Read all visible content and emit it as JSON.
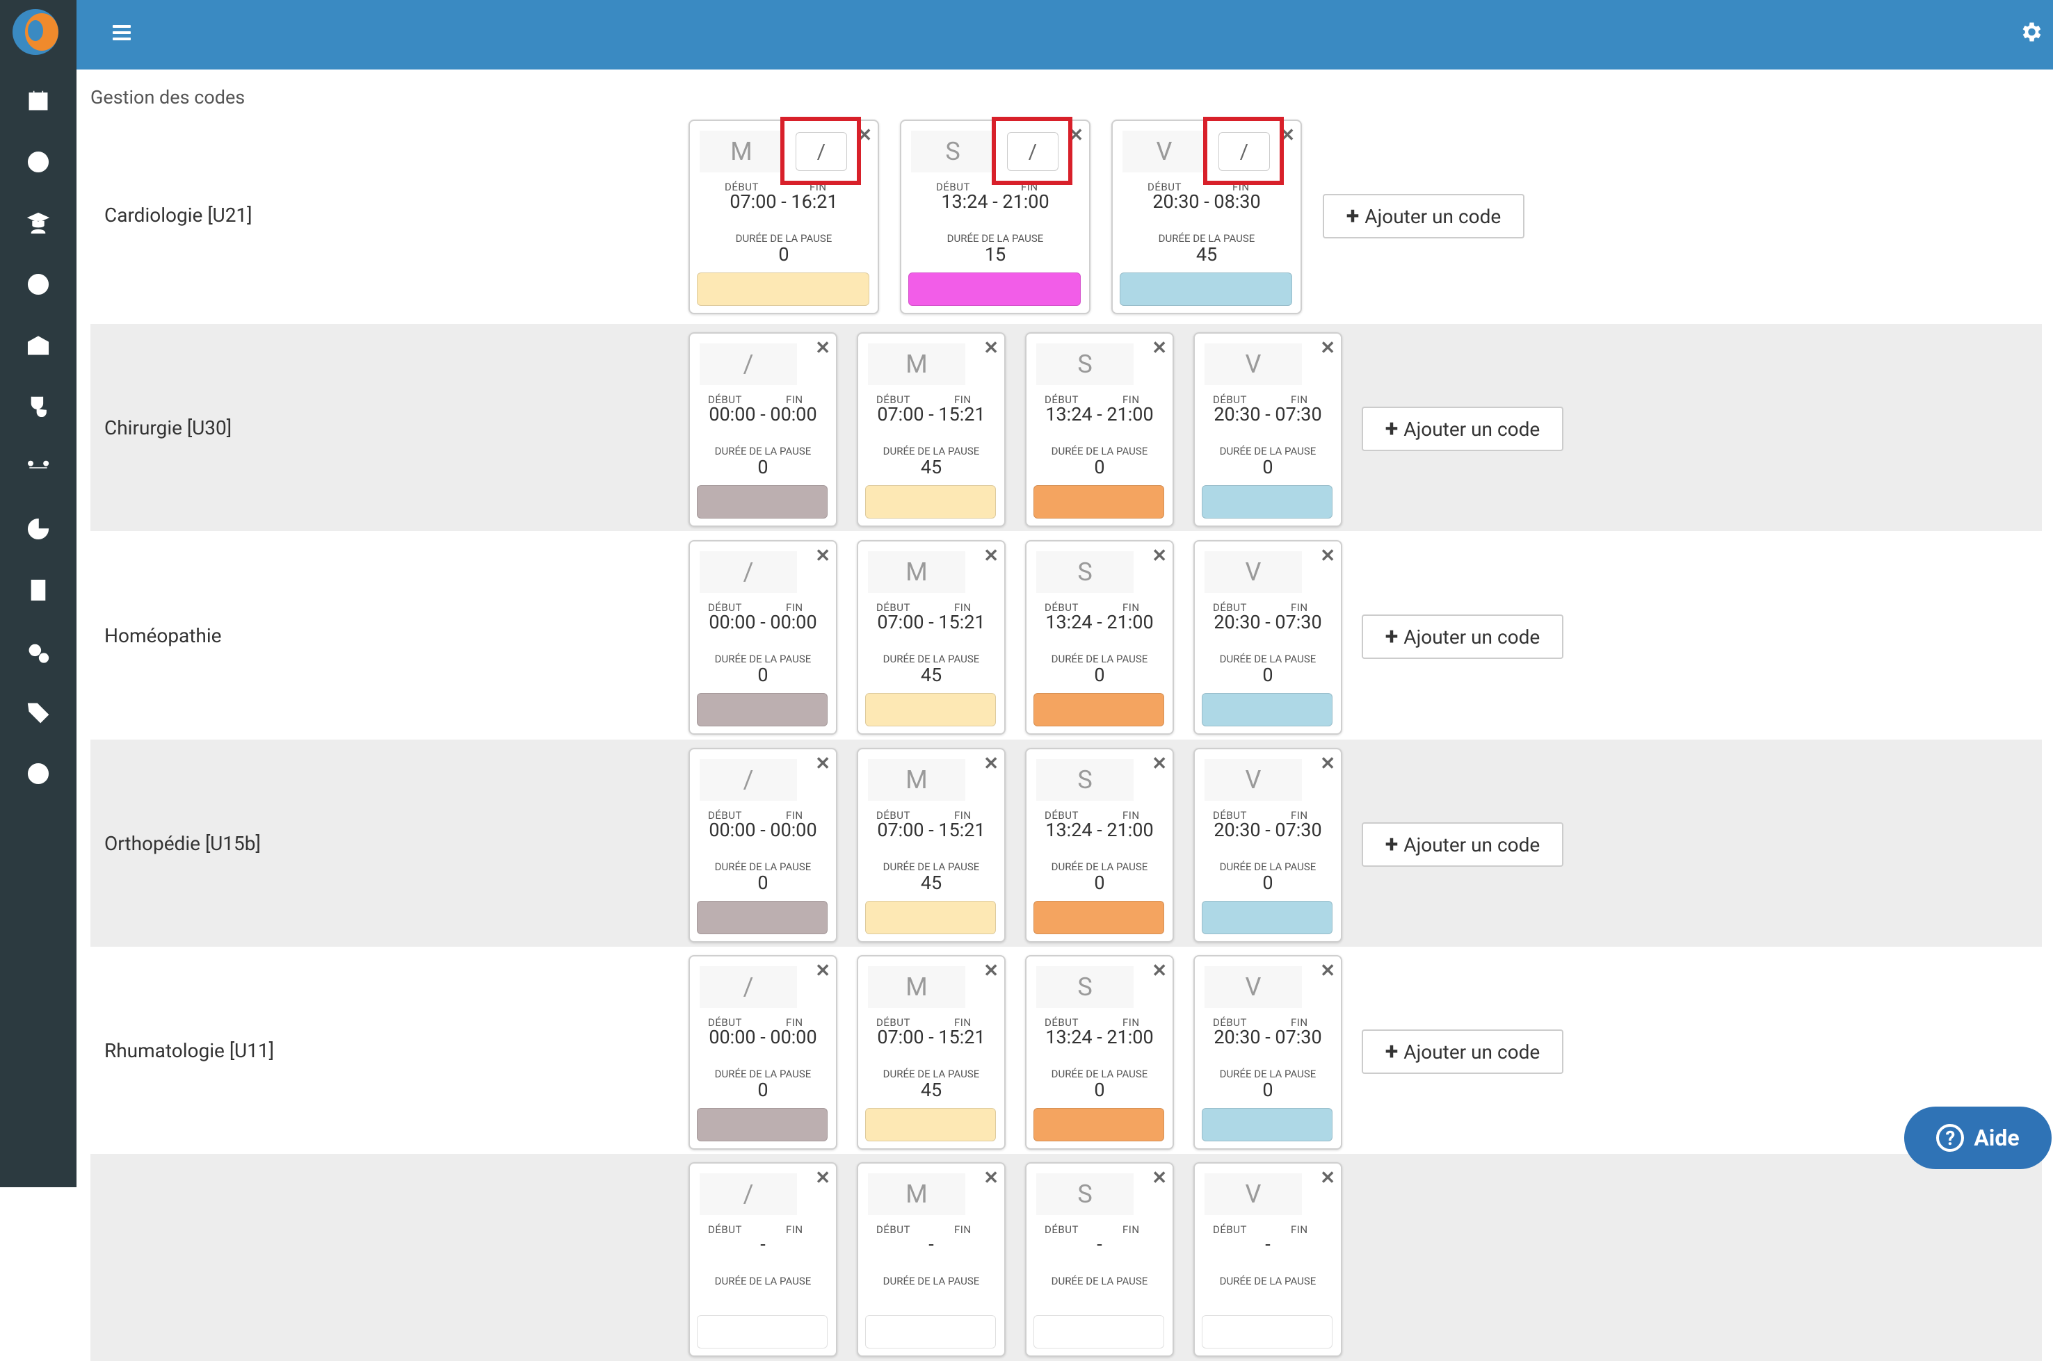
{
  "page": {
    "title": "Gestion des codes"
  },
  "labels": {
    "debut": "DÉBUT",
    "fin": "FIN",
    "pause": "DURÉE DE LA PAUSE",
    "add": "Ajouter un code"
  },
  "help": {
    "label": "Aide"
  },
  "sidebar": {
    "icons": [
      "calendar-icon",
      "clock-icon",
      "user-graduate-icon",
      "smile-icon",
      "hospital-user-icon",
      "stethoscope-icon",
      "people-arrows-icon",
      "pie-chart-icon",
      "id-badge-icon",
      "cogs-icon",
      "tags-icon",
      "info-icon"
    ]
  },
  "colors": {
    "topbar": "#3a8ac2",
    "sidebar": "#2c3a40",
    "highlight": "#d8202a"
  },
  "services": [
    {
      "name": "Cardiologie [U21]",
      "codes": [
        {
          "code": "M",
          "debut": "07:00",
          "fin": "16:21",
          "pause": "0",
          "color": "#fde8b4",
          "fin_input": "/"
        },
        {
          "code": "S",
          "debut": "13:24",
          "fin": "21:00",
          "pause": "15",
          "color": "#f25de8",
          "fin_input": "/"
        },
        {
          "code": "V",
          "debut": "20:30",
          "fin": "08:30",
          "pause": "45",
          "color": "#aed8e6",
          "fin_input": "/"
        }
      ]
    },
    {
      "name": "Chirurgie [U30]",
      "codes": [
        {
          "code": "/",
          "debut": "00:00",
          "fin": "00:00",
          "pause": "0",
          "color": "#bcafb0"
        },
        {
          "code": "M",
          "debut": "07:00",
          "fin": "15:21",
          "pause": "45",
          "color": "#fde8b4"
        },
        {
          "code": "S",
          "debut": "13:24",
          "fin": "21:00",
          "pause": "0",
          "color": "#f4a460"
        },
        {
          "code": "V",
          "debut": "20:30",
          "fin": "07:30",
          "pause": "0",
          "color": "#aed8e6"
        }
      ]
    },
    {
      "name": "Homéopathie",
      "codes": [
        {
          "code": "/",
          "debut": "00:00",
          "fin": "00:00",
          "pause": "0",
          "color": "#bcafb0"
        },
        {
          "code": "M",
          "debut": "07:00",
          "fin": "15:21",
          "pause": "45",
          "color": "#fde8b4"
        },
        {
          "code": "S",
          "debut": "13:24",
          "fin": "21:00",
          "pause": "0",
          "color": "#f4a460"
        },
        {
          "code": "V",
          "debut": "20:30",
          "fin": "07:30",
          "pause": "0",
          "color": "#aed8e6"
        }
      ]
    },
    {
      "name": "Orthopédie [U15b]",
      "codes": [
        {
          "code": "/",
          "debut": "00:00",
          "fin": "00:00",
          "pause": "0",
          "color": "#bcafb0"
        },
        {
          "code": "M",
          "debut": "07:00",
          "fin": "15:21",
          "pause": "45",
          "color": "#fde8b4"
        },
        {
          "code": "S",
          "debut": "13:24",
          "fin": "21:00",
          "pause": "0",
          "color": "#f4a460"
        },
        {
          "code": "V",
          "debut": "20:30",
          "fin": "07:30",
          "pause": "0",
          "color": "#aed8e6"
        }
      ]
    },
    {
      "name": "Rhumatologie [U11]",
      "codes": [
        {
          "code": "/",
          "debut": "00:00",
          "fin": "00:00",
          "pause": "0",
          "color": "#bcafb0"
        },
        {
          "code": "M",
          "debut": "07:00",
          "fin": "15:21",
          "pause": "45",
          "color": "#fde8b4"
        },
        {
          "code": "S",
          "debut": "13:24",
          "fin": "21:00",
          "pause": "0",
          "color": "#f4a460"
        },
        {
          "code": "V",
          "debut": "20:30",
          "fin": "07:30",
          "pause": "0",
          "color": "#aed8e6"
        }
      ]
    },
    {
      "name": "",
      "codes": [
        {
          "code": "/",
          "debut": "",
          "fin": "",
          "pause": "",
          "color": "#ffffff"
        },
        {
          "code": "M",
          "debut": "",
          "fin": "",
          "pause": "",
          "color": "#ffffff"
        },
        {
          "code": "S",
          "debut": "",
          "fin": "",
          "pause": "",
          "color": "#ffffff"
        },
        {
          "code": "V",
          "debut": "",
          "fin": "",
          "pause": "",
          "color": "#ffffff"
        }
      ]
    }
  ]
}
